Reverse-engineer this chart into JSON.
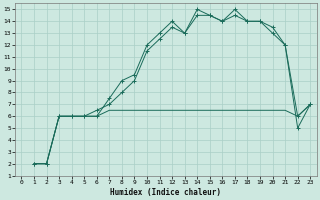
{
  "xlabel": "Humidex (Indice chaleur)",
  "bg_color": "#cde8e0",
  "grid_color": "#aacfc7",
  "line_color": "#1a6b5a",
  "xlim": [
    -0.5,
    23.5
  ],
  "ylim": [
    1,
    15.5
  ],
  "xticks": [
    0,
    1,
    2,
    3,
    4,
    5,
    6,
    7,
    8,
    9,
    10,
    11,
    12,
    13,
    14,
    15,
    16,
    17,
    18,
    19,
    20,
    21,
    22,
    23
  ],
  "yticks": [
    1,
    2,
    3,
    4,
    5,
    6,
    7,
    8,
    9,
    10,
    11,
    12,
    13,
    14,
    15
  ],
  "line1_x": [
    1,
    2,
    3,
    4,
    5,
    6,
    7,
    8,
    9,
    10,
    11,
    12,
    13,
    14,
    15,
    16,
    17,
    18,
    19,
    20,
    21,
    22,
    23
  ],
  "line1_y": [
    2,
    2,
    6,
    6,
    6,
    6,
    7.5,
    9,
    9.5,
    12,
    13,
    14,
    13,
    15,
    14.5,
    14,
    15,
    14,
    14,
    13.5,
    12,
    6,
    7
  ],
  "line2_x": [
    1,
    2,
    3,
    4,
    5,
    6,
    7,
    8,
    9,
    10,
    11,
    12,
    13,
    14,
    15,
    16,
    17,
    18,
    19,
    20,
    21,
    22,
    23
  ],
  "line2_y": [
    2,
    2,
    6,
    6,
    6,
    6.5,
    7,
    8,
    9,
    11.5,
    12.5,
    13.5,
    13,
    14.5,
    14.5,
    14,
    14.5,
    14,
    14,
    13,
    12,
    5,
    7
  ],
  "line3_x": [
    1,
    2,
    3,
    4,
    5,
    6,
    7,
    8,
    9,
    10,
    11,
    12,
    13,
    14,
    15,
    16,
    17,
    18,
    19,
    20,
    21,
    22,
    23
  ],
  "line3_y": [
    2,
    2,
    6,
    6,
    6,
    6,
    6.5,
    6.5,
    6.5,
    6.5,
    6.5,
    6.5,
    6.5,
    6.5,
    6.5,
    6.5,
    6.5,
    6.5,
    6.5,
    6.5,
    6.5,
    6,
    7
  ]
}
